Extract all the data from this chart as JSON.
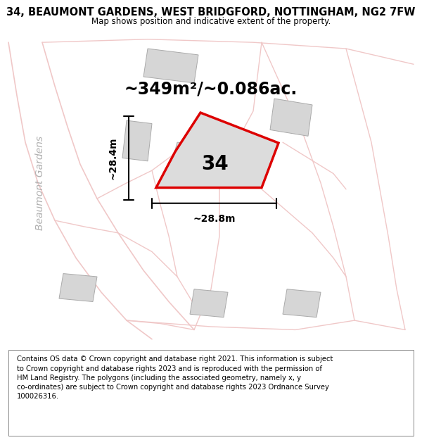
{
  "title": "34, BEAUMONT GARDENS, WEST BRIDGFORD, NOTTINGHAM, NG2 7FW",
  "subtitle": "Map shows position and indicative extent of the property.",
  "footer": "Contains OS data © Crown copyright and database right 2021. This information is subject\nto Crown copyright and database rights 2023 and is reproduced with the permission of\nHM Land Registry. The polygons (including the associated geometry, namely x, y\nco-ordinates) are subject to Crown copyright and database rights 2023 Ordnance Survey\n100026316.",
  "area_label": "~349m²/~0.086ac.",
  "number_label": "34",
  "width_label": "~28.8m",
  "height_label": "~28.4m",
  "street_label": "Beaumont Gardens",
  "map_background": "#f2f2f2",
  "building_color": "#d6d6d6",
  "building_edge_color": "#aaaaaa",
  "plot_fill_color": "#dcdcdc",
  "plot_edge_color": "#dd0000",
  "road_color": "#f0c8c8",
  "title_fontsize": 10.5,
  "subtitle_fontsize": 8.5,
  "footer_fontsize": 7.2,
  "area_fontsize": 17,
  "number_fontsize": 20,
  "dim_fontsize": 10,
  "street_fontsize": 10
}
